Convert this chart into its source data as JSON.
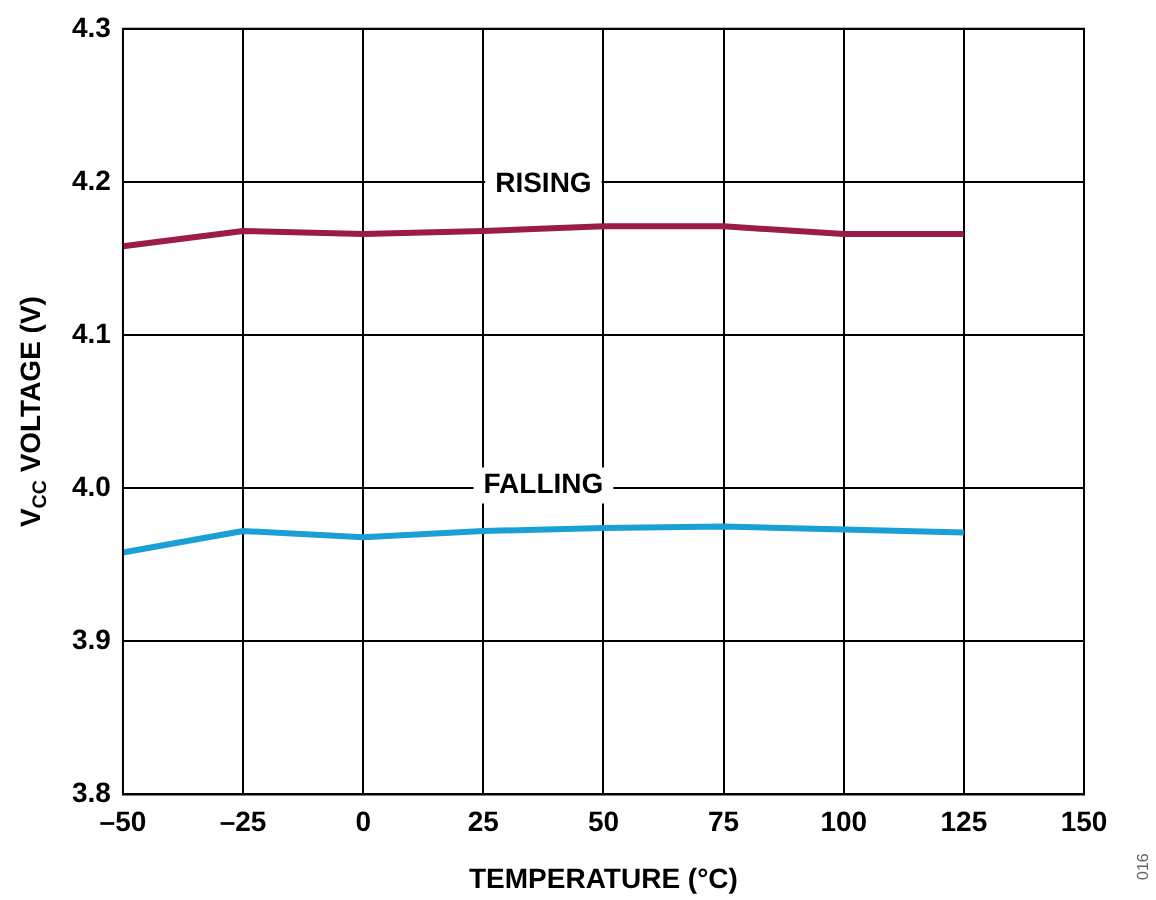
{
  "chart_data": {
    "type": "line",
    "xlabel": "TEMPERATURE (°C)",
    "ylabel": "V$_{CC}$ VOLTAGE (V)",
    "x": [
      -50,
      -25,
      0,
      25,
      50,
      75,
      100,
      125
    ],
    "series": [
      {
        "name": "RISING",
        "color": "#9b1b4a",
        "values": [
          4.158,
          4.168,
          4.166,
          4.168,
          4.171,
          4.171,
          4.166,
          4.166
        ]
      },
      {
        "name": "FALLING",
        "color": "#1a9fd6",
        "values": [
          3.958,
          3.972,
          3.968,
          3.972,
          3.974,
          3.975,
          3.973,
          3.971
        ]
      }
    ],
    "xlim": [
      -50,
      150
    ],
    "xticks": [
      {
        "value": -50,
        "label": "–50"
      },
      {
        "value": -25,
        "label": "–25"
      },
      0,
      25,
      50,
      75,
      100,
      125,
      150
    ],
    "ylim": [
      3.8,
      4.3
    ],
    "yticks": [
      {
        "value": 3.8,
        "label": "3.8"
      },
      {
        "value": 3.9,
        "label": "3.9"
      },
      {
        "value": 4.0,
        "label": "4.0"
      },
      {
        "value": 4.1,
        "label": "4.1"
      },
      {
        "value": 4.2,
        "label": "4.2"
      },
      {
        "value": 4.3,
        "label": "4.3"
      }
    ],
    "grid": true,
    "legend": false,
    "marker": "none",
    "line_style": "solid",
    "annotations": [
      "016"
    ]
  }
}
